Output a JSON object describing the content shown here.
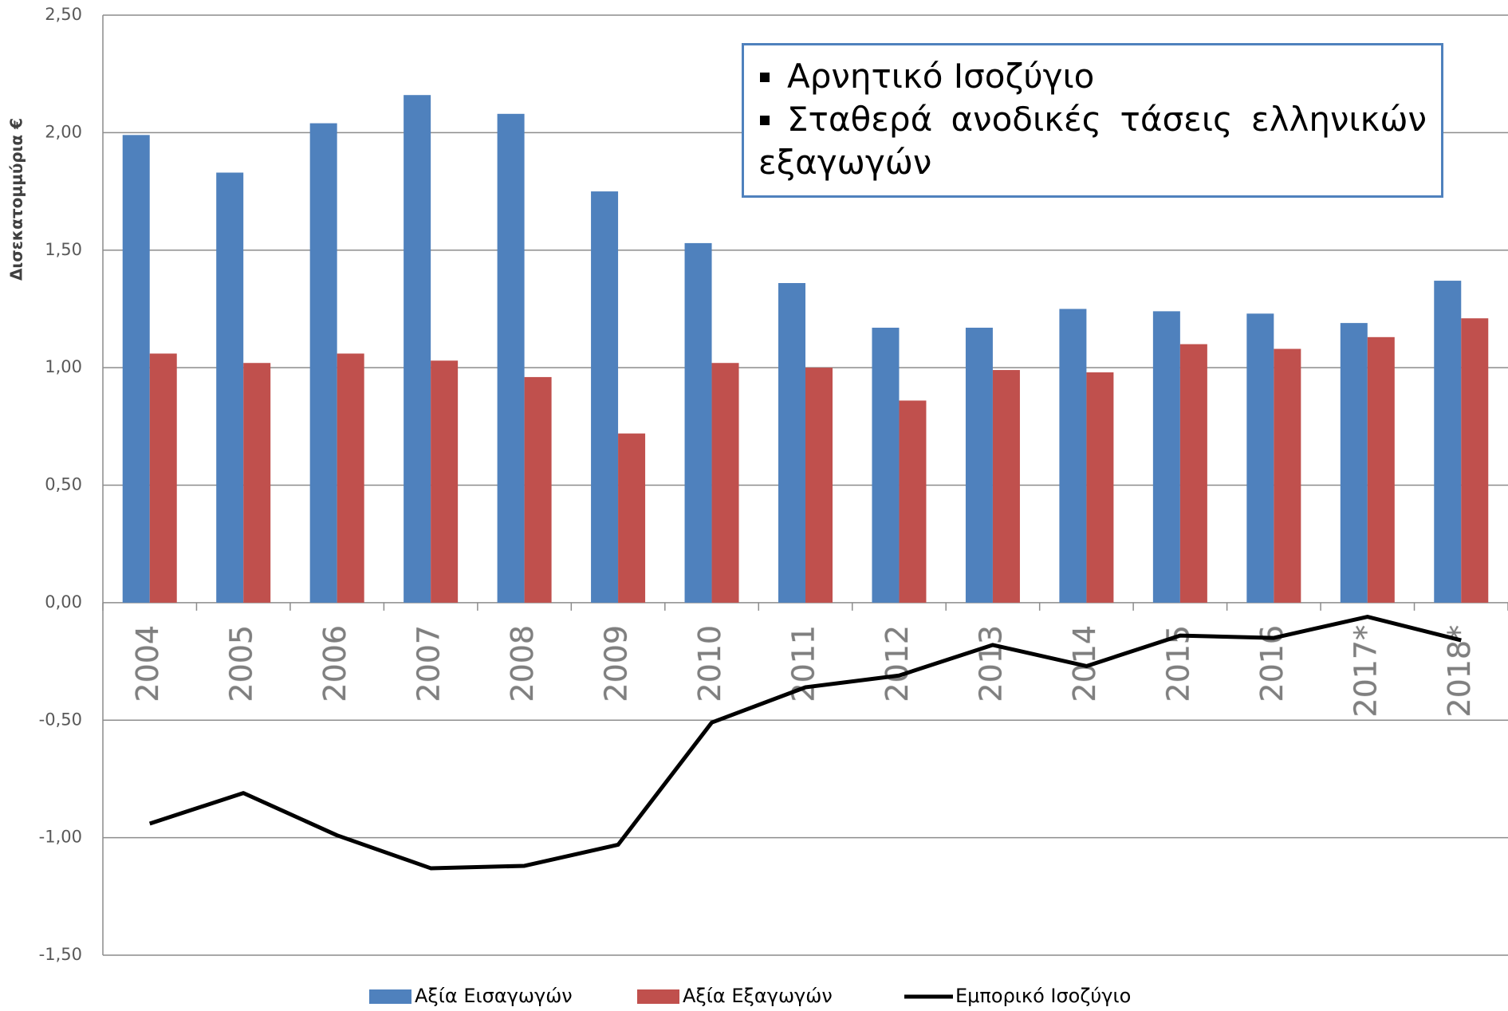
{
  "chart_data": {
    "type": "bar-line",
    "y_label": "Δισεκατομμύρια €",
    "categories": [
      "2004",
      "2005",
      "2006",
      "2007",
      "2008",
      "2009",
      "2010",
      "2011",
      "2012",
      "2013",
      "2014",
      "2015",
      "2016",
      "2017*",
      "2018*"
    ],
    "series": [
      {
        "name": "Αξία Εισαγωγών",
        "type": "bar",
        "color": "#4f81bd",
        "values": [
          1.99,
          1.83,
          2.04,
          2.16,
          2.08,
          1.75,
          1.53,
          1.36,
          1.17,
          1.17,
          1.25,
          1.24,
          1.23,
          1.19,
          1.37
        ]
      },
      {
        "name": "Αξία Εξαγωγών",
        "type": "bar",
        "color": "#c0504d",
        "values": [
          1.06,
          1.02,
          1.06,
          1.03,
          0.96,
          0.72,
          1.02,
          1.0,
          0.86,
          0.99,
          0.98,
          1.1,
          1.08,
          1.13,
          1.21
        ]
      },
      {
        "name": "Εμπορικό Ισοζύγιο",
        "type": "line",
        "color": "#000000",
        "values": [
          -0.94,
          -0.81,
          -0.99,
          -1.13,
          -1.12,
          -1.03,
          -0.51,
          -0.36,
          -0.31,
          -0.18,
          -0.27,
          -0.14,
          -0.15,
          -0.06,
          -0.16
        ]
      }
    ],
    "ylim": [
      -1.5,
      2.5
    ],
    "yticks": [
      {
        "value": -1.5,
        "label": "-1,50"
      },
      {
        "value": -1,
        "label": "-1,00"
      },
      {
        "value": -0.5,
        "label": "-0,50"
      },
      {
        "value": 0,
        "label": "0,00"
      },
      {
        "value": 0.5,
        "label": "0,50"
      },
      {
        "value": 1,
        "label": "1,00"
      },
      {
        "value": 1.5,
        "label": "1,50"
      },
      {
        "value": 2,
        "label": "2,00"
      },
      {
        "value": 2.5,
        "label": "2,50"
      }
    ],
    "grid": true,
    "annotation": [
      "Αρνητικό Ισοζύγιο",
      "Σταθερά ανοδικές τάσεις ελληνικών εξαγωγών"
    ]
  }
}
